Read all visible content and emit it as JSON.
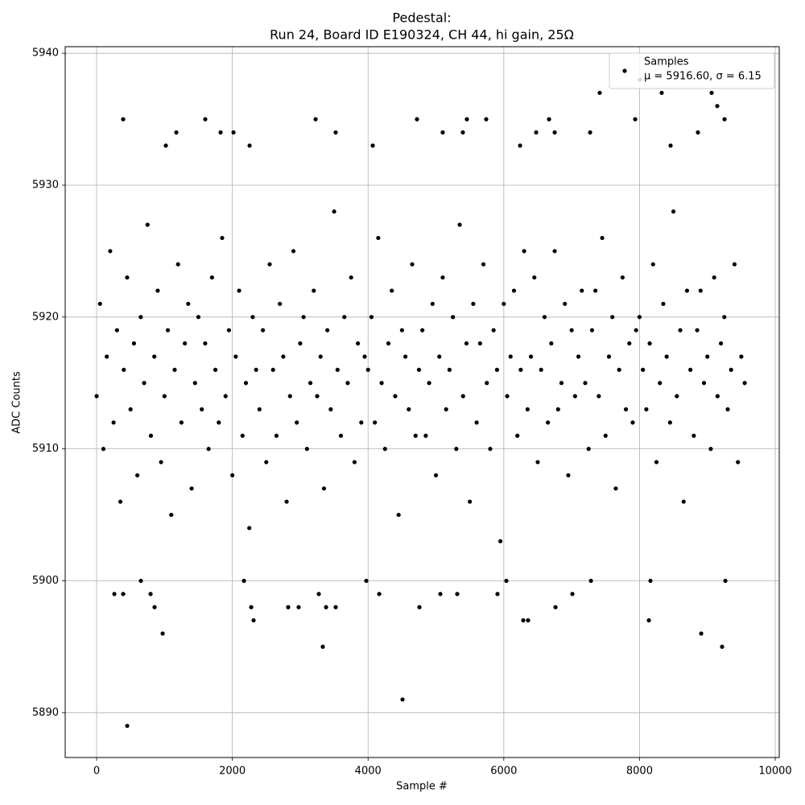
{
  "chart_data": {
    "type": "scatter",
    "title": [
      "Pedestal:",
      "Run 24, Board ID E190324, CH 44, hi gain, 25Ω"
    ],
    "x_label": "Sample #",
    "y_label": "ADC Counts",
    "xlim": [
      -463,
      10059
    ],
    "ylim": [
      5886.6,
      5940.5
    ],
    "xticks": [
      0,
      2000,
      4000,
      6000,
      8000,
      10000
    ],
    "yticks": [
      5890,
      5900,
      5910,
      5920,
      5930,
      5940
    ],
    "grid": true,
    "legend": "upper right",
    "series": [
      {
        "name": "Samples",
        "label": "μ = 5916.60, σ = 6.15",
        "color": "#000000",
        "x": [
          0,
          50,
          100,
          150,
          200,
          250,
          300,
          350,
          400,
          450,
          500,
          550,
          600,
          650,
          700,
          750,
          800,
          850,
          900,
          950,
          1000,
          1050,
          1100,
          1150,
          1200,
          1250,
          1300,
          1350,
          1400,
          1450,
          1500,
          1550,
          1600,
          1650,
          1700,
          1750,
          1800,
          1850,
          1900,
          1950,
          2000,
          2050,
          2100,
          2150,
          2200,
          2250,
          2300,
          2350,
          2400,
          2450,
          2500,
          2550,
          2600,
          2650,
          2700,
          2750,
          2800,
          2850,
          2900,
          2950,
          3000,
          3050,
          3100,
          3150,
          3200,
          3250,
          3300,
          3350,
          3400,
          3450,
          3500,
          3550,
          3600,
          3650,
          3700,
          3750,
          3800,
          3850,
          3900,
          3950,
          4000,
          4050,
          4100,
          4150,
          4200,
          4250,
          4300,
          4350,
          4400,
          4450,
          4500,
          4550,
          4600,
          4650,
          4700,
          4750,
          4800,
          4850,
          4900,
          4950,
          5000,
          5050,
          5100,
          5150,
          5200,
          5250,
          5300,
          5350,
          5400,
          5450,
          5500,
          5550,
          5600,
          5650,
          5700,
          5750,
          5800,
          5850,
          5900,
          5950,
          6000,
          6050,
          6100,
          6150,
          6200,
          6250,
          6300,
          6350,
          6400,
          6450,
          6500,
          6550,
          6600,
          6650,
          6700,
          6750,
          6800,
          6850,
          6900,
          6950,
          7000,
          7050,
          7100,
          7150,
          7200,
          7250,
          7300,
          7350,
          7400,
          7450,
          7500,
          7550,
          7600,
          7650,
          7700,
          7750,
          7800,
          7850,
          7900,
          7950,
          8000,
          8050,
          8100,
          8150,
          8200,
          8250,
          8300,
          8350,
          8400,
          8450,
          8500,
          8550,
          8600,
          8650,
          8700,
          8750,
          8800,
          8850,
          8900,
          8950,
          9000,
          9050,
          9100,
          9150,
          9200,
          9250,
          9300,
          9350,
          9400,
          9450,
          9500,
          9550,
          451,
          4508,
          973,
          3333,
          8909,
          9217,
          2313,
          8138,
          6287,
          6358,
          854,
          2278,
          2823,
          2977,
          3381,
          3523,
          4757,
          6762,
          261,
          391,
          795,
          3274,
          4164,
          5065,
          5314,
          5907,
          7011,
          391,
          1601,
          3227,
          4721,
          5456,
          5741,
          6667,
          7936,
          9253,
          7414,
          8327,
          9063,
          8007,
          9146,
          1174,
          1827,
          2017,
          3523,
          5100,
          5397,
          6477,
          6750,
          7272,
          8861,
          652,
          2171,
          3974,
          6038,
          7284,
          8161,
          9265,
          1020,
          2254,
          4069,
          6240,
          8458
        ],
        "values": [
          5914,
          5921,
          5910,
          5917,
          5925,
          5912,
          5919,
          5906,
          5916,
          5923,
          5913,
          5918,
          5908,
          5920,
          5915,
          5927,
          5911,
          5917,
          5922,
          5909,
          5914,
          5919,
          5905,
          5916,
          5924,
          5912,
          5918,
          5921,
          5907,
          5915,
          5920,
          5913,
          5918,
          5910,
          5923,
          5916,
          5912,
          5926,
          5914,
          5919,
          5908,
          5917,
          5922,
          5911,
          5915,
          5904,
          5920,
          5916,
          5913,
          5919,
          5909,
          5924,
          5916,
          5911,
          5921,
          5917,
          5906,
          5914,
          5925,
          5912,
          5918,
          5920,
          5910,
          5915,
          5922,
          5914,
          5917,
          5907,
          5919,
          5913,
          5928,
          5916,
          5911,
          5920,
          5915,
          5923,
          5909,
          5918,
          5912,
          5917,
          5916,
          5920,
          5912,
          5926,
          5915,
          5910,
          5918,
          5922,
          5914,
          5905,
          5919,
          5917,
          5913,
          5924,
          5911,
          5916,
          5919,
          5911,
          5915,
          5921,
          5908,
          5917,
          5923,
          5913,
          5916,
          5920,
          5910,
          5927,
          5914,
          5918,
          5906,
          5921,
          5912,
          5918,
          5924,
          5915,
          5910,
          5919,
          5916,
          5903,
          5921,
          5914,
          5917,
          5922,
          5911,
          5916,
          5925,
          5913,
          5917,
          5923,
          5909,
          5916,
          5920,
          5912,
          5918,
          5925,
          5913,
          5915,
          5921,
          5908,
          5919,
          5914,
          5917,
          5922,
          5915,
          5910,
          5919,
          5922,
          5914,
          5926,
          5911,
          5917,
          5920,
          5907,
          5916,
          5923,
          5913,
          5918,
          5912,
          5919,
          5920,
          5916,
          5913,
          5918,
          5924,
          5909,
          5915,
          5921,
          5917,
          5912,
          5928,
          5914,
          5919,
          5906,
          5922,
          5916,
          5911,
          5919,
          5922,
          5915,
          5917,
          5910,
          5923,
          5914,
          5918,
          5920,
          5913,
          5916,
          5924,
          5909,
          5917,
          5915,
          5889,
          5891,
          5896,
          5895,
          5896,
          5895,
          5897,
          5897,
          5897,
          5897,
          5898,
          5898,
          5898,
          5898,
          5898,
          5898,
          5898,
          5898,
          5899,
          5899,
          5899,
          5899,
          5899,
          5899,
          5899,
          5899,
          5899,
          5935,
          5935,
          5935,
          5935,
          5935,
          5935,
          5935,
          5935,
          5935,
          5937,
          5937,
          5937,
          5938,
          5936,
          5934,
          5934,
          5934,
          5934,
          5934,
          5934,
          5934,
          5934,
          5934,
          5934,
          5900,
          5900,
          5900,
          5900,
          5900,
          5900,
          5900,
          5933,
          5933,
          5933,
          5933,
          5933
        ]
      }
    ]
  }
}
